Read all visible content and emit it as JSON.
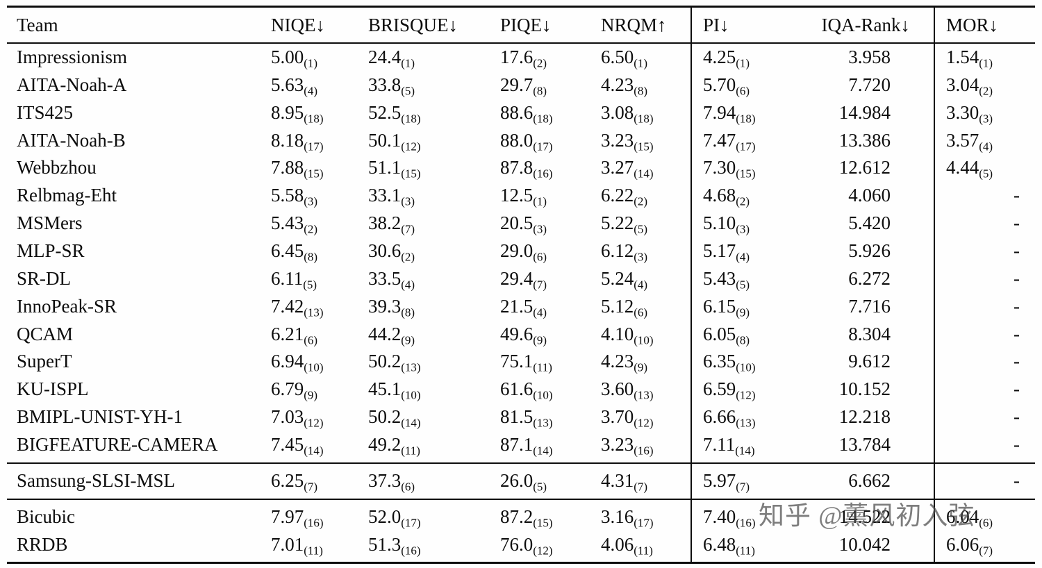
{
  "table": {
    "header": {
      "columns": [
        "Team",
        "NIQE↓",
        "BRISQUE↓",
        "PIQE↓",
        "NRQM↑",
        "PI↓",
        "IQA-Rank↓",
        "MOR↓"
      ]
    },
    "sections": [
      {
        "name": "challenge-teams",
        "rows": [
          {
            "team": "Impressionism",
            "cells": [
              {
                "v": "5.00",
                "rank": "1"
              },
              {
                "v": "24.4",
                "rank": "1"
              },
              {
                "v": "17.6",
                "rank": "2"
              },
              {
                "v": "6.50",
                "rank": "1"
              },
              {
                "v": "4.25",
                "rank": "1"
              },
              {
                "v": "3.958"
              },
              {
                "v": "1.54",
                "rank": "1"
              }
            ]
          },
          {
            "team": "AITA-Noah-A",
            "cells": [
              {
                "v": "5.63",
                "rank": "4"
              },
              {
                "v": "33.8",
                "rank": "5"
              },
              {
                "v": "29.7",
                "rank": "8"
              },
              {
                "v": "4.23",
                "rank": "8"
              },
              {
                "v": "5.70",
                "rank": "6"
              },
              {
                "v": "7.720"
              },
              {
                "v": "3.04",
                "rank": "2"
              }
            ]
          },
          {
            "team": "ITS425",
            "cells": [
              {
                "v": "8.95",
                "rank": "18"
              },
              {
                "v": "52.5",
                "rank": "18"
              },
              {
                "v": "88.6",
                "rank": "18"
              },
              {
                "v": "3.08",
                "rank": "18"
              },
              {
                "v": "7.94",
                "rank": "18"
              },
              {
                "v": "14.984"
              },
              {
                "v": "3.30",
                "rank": "3"
              }
            ]
          },
          {
            "team": "AITA-Noah-B",
            "cells": [
              {
                "v": "8.18",
                "rank": "17"
              },
              {
                "v": "50.1",
                "rank": "12"
              },
              {
                "v": "88.0",
                "rank": "17"
              },
              {
                "v": "3.23",
                "rank": "15"
              },
              {
                "v": "7.47",
                "rank": "17"
              },
              {
                "v": "13.386"
              },
              {
                "v": "3.57",
                "rank": "4"
              }
            ]
          },
          {
            "team": "Webbzhou",
            "cells": [
              {
                "v": "7.88",
                "rank": "15"
              },
              {
                "v": "51.1",
                "rank": "15"
              },
              {
                "v": "87.8",
                "rank": "16"
              },
              {
                "v": "3.27",
                "rank": "14"
              },
              {
                "v": "7.30",
                "rank": "15"
              },
              {
                "v": "12.612"
              },
              {
                "v": "4.44",
                "rank": "5"
              }
            ]
          },
          {
            "team": "Relbmag-Eht",
            "cells": [
              {
                "v": "5.58",
                "rank": "3"
              },
              {
                "v": "33.1",
                "rank": "3"
              },
              {
                "v": "12.5",
                "rank": "1"
              },
              {
                "v": "6.22",
                "rank": "2"
              },
              {
                "v": "4.68",
                "rank": "2"
              },
              {
                "v": "4.060"
              },
              {
                "v": "-"
              }
            ]
          },
          {
            "team": "MSMers",
            "cells": [
              {
                "v": "5.43",
                "rank": "2"
              },
              {
                "v": "38.2",
                "rank": "7"
              },
              {
                "v": "20.5",
                "rank": "3"
              },
              {
                "v": "5.22",
                "rank": "5"
              },
              {
                "v": "5.10",
                "rank": "3"
              },
              {
                "v": "5.420"
              },
              {
                "v": "-"
              }
            ]
          },
          {
            "team": "MLP-SR",
            "cells": [
              {
                "v": "6.45",
                "rank": "8"
              },
              {
                "v": "30.6",
                "rank": "2"
              },
              {
                "v": "29.0",
                "rank": "6"
              },
              {
                "v": "6.12",
                "rank": "3"
              },
              {
                "v": "5.17",
                "rank": "4"
              },
              {
                "v": "5.926"
              },
              {
                "v": "-"
              }
            ]
          },
          {
            "team": "SR-DL",
            "cells": [
              {
                "v": "6.11",
                "rank": "5"
              },
              {
                "v": "33.5",
                "rank": "4"
              },
              {
                "v": "29.4",
                "rank": "7"
              },
              {
                "v": "5.24",
                "rank": "4"
              },
              {
                "v": "5.43",
                "rank": "5"
              },
              {
                "v": "6.272"
              },
              {
                "v": "-"
              }
            ]
          },
          {
            "team": "InnoPeak-SR",
            "cells": [
              {
                "v": "7.42",
                "rank": "13"
              },
              {
                "v": "39.3",
                "rank": "8"
              },
              {
                "v": "21.5",
                "rank": "4"
              },
              {
                "v": "5.12",
                "rank": "6"
              },
              {
                "v": "6.15",
                "rank": "9"
              },
              {
                "v": "7.716"
              },
              {
                "v": "-"
              }
            ]
          },
          {
            "team": "QCAM",
            "cells": [
              {
                "v": "6.21",
                "rank": "6"
              },
              {
                "v": "44.2",
                "rank": "9"
              },
              {
                "v": "49.6",
                "rank": "9"
              },
              {
                "v": "4.10",
                "rank": "10"
              },
              {
                "v": "6.05",
                "rank": "8"
              },
              {
                "v": "8.304"
              },
              {
                "v": "-"
              }
            ]
          },
          {
            "team": "SuperT",
            "cells": [
              {
                "v": "6.94",
                "rank": "10"
              },
              {
                "v": "50.2",
                "rank": "13"
              },
              {
                "v": "75.1",
                "rank": "11"
              },
              {
                "v": "4.23",
                "rank": "9"
              },
              {
                "v": "6.35",
                "rank": "10"
              },
              {
                "v": "9.612"
              },
              {
                "v": "-"
              }
            ]
          },
          {
            "team": "KU-ISPL",
            "cells": [
              {
                "v": "6.79",
                "rank": "9"
              },
              {
                "v": "45.1",
                "rank": "10"
              },
              {
                "v": "61.6",
                "rank": "10"
              },
              {
                "v": "3.60",
                "rank": "13"
              },
              {
                "v": "6.59",
                "rank": "12"
              },
              {
                "v": "10.152"
              },
              {
                "v": "-"
              }
            ]
          },
          {
            "team": "BMIPL-UNIST-YH-1",
            "cells": [
              {
                "v": "7.03",
                "rank": "12"
              },
              {
                "v": "50.2",
                "rank": "14"
              },
              {
                "v": "81.5",
                "rank": "13"
              },
              {
                "v": "3.70",
                "rank": "12"
              },
              {
                "v": "6.66",
                "rank": "13"
              },
              {
                "v": "12.218"
              },
              {
                "v": "-"
              }
            ]
          },
          {
            "team": "BIGFEATURE-CAMERA",
            "cells": [
              {
                "v": "7.45",
                "rank": "14"
              },
              {
                "v": "49.2",
                "rank": "11"
              },
              {
                "v": "87.1",
                "rank": "14"
              },
              {
                "v": "3.23",
                "rank": "16"
              },
              {
                "v": "7.11",
                "rank": "14"
              },
              {
                "v": "13.784"
              },
              {
                "v": "-"
              }
            ]
          }
        ]
      },
      {
        "name": "samsung",
        "rows": [
          {
            "team": "Samsung-SLSI-MSL",
            "cells": [
              {
                "v": "6.25",
                "rank": "7"
              },
              {
                "v": "37.3",
                "rank": "6"
              },
              {
                "v": "26.0",
                "rank": "5"
              },
              {
                "v": "4.31",
                "rank": "7"
              },
              {
                "v": "5.97",
                "rank": "7"
              },
              {
                "v": "6.662"
              },
              {
                "v": "-"
              }
            ]
          }
        ]
      },
      {
        "name": "baselines",
        "rows": [
          {
            "team": "Bicubic",
            "cells": [
              {
                "v": "7.97",
                "rank": "16"
              },
              {
                "v": "52.0",
                "rank": "17"
              },
              {
                "v": "87.2",
                "rank": "15"
              },
              {
                "v": "3.16",
                "rank": "17"
              },
              {
                "v": "7.40",
                "rank": "16"
              },
              {
                "v": "14.522"
              },
              {
                "v": "6.04",
                "rank": "6"
              }
            ]
          },
          {
            "team": "RRDB",
            "cells": [
              {
                "v": "7.01",
                "rank": "11"
              },
              {
                "v": "51.3",
                "rank": "16"
              },
              {
                "v": "76.0",
                "rank": "12"
              },
              {
                "v": "4.06",
                "rank": "11"
              },
              {
                "v": "6.48",
                "rank": "11"
              },
              {
                "v": "10.042"
              },
              {
                "v": "6.06",
                "rank": "7"
              }
            ]
          }
        ]
      }
    ]
  },
  "watermark": {
    "text": "知乎 @薰风初入弦"
  }
}
